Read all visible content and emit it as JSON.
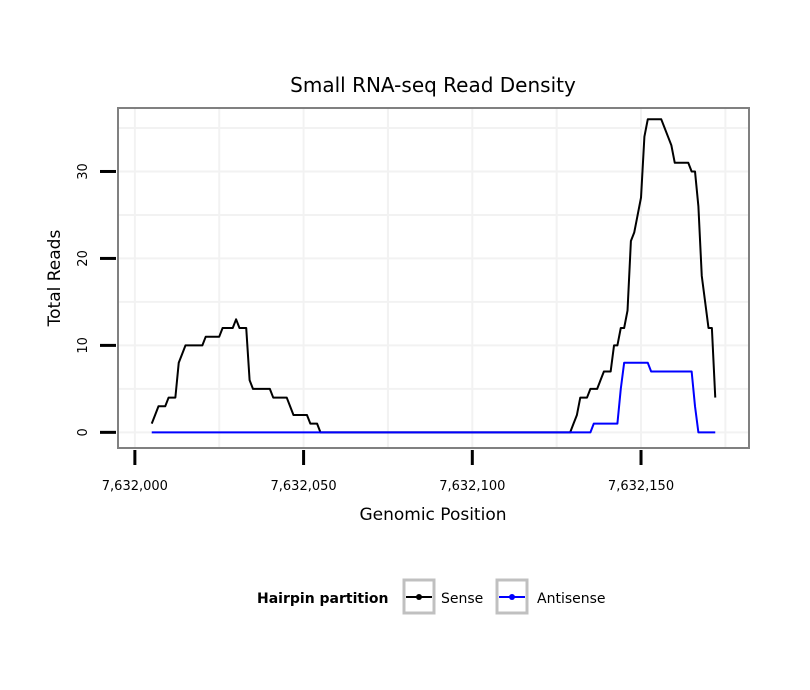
{
  "chart_data": {
    "type": "line",
    "title": "Small RNA-seq Read Density",
    "xlabel": "Genomic Position",
    "ylabel": "Total Reads",
    "xlim": [
      7631995,
      7632182
    ],
    "ylim": [
      -1.8,
      37.3
    ],
    "x_ticks": [
      7632000,
      7632050,
      7632100,
      7632150
    ],
    "x_tick_labels": [
      "7,632,000",
      "7,632,050",
      "7,632,100",
      "7,632,150"
    ],
    "y_ticks": [
      0,
      10,
      20,
      30
    ],
    "y_tick_labels": [
      "0",
      "10",
      "20",
      "30"
    ],
    "grid": true,
    "legend": {
      "title": "Hairpin partition",
      "position": "bottom",
      "entries": [
        "Sense",
        "Antisense"
      ]
    },
    "series": [
      {
        "name": "Sense",
        "color": "#000000",
        "points": [
          [
            7632005,
            1
          ],
          [
            7632006,
            2
          ],
          [
            7632007,
            3
          ],
          [
            7632008,
            3
          ],
          [
            7632009,
            3
          ],
          [
            7632010,
            4
          ],
          [
            7632011,
            4
          ],
          [
            7632012,
            4
          ],
          [
            7632013,
            8
          ],
          [
            7632014,
            9
          ],
          [
            7632015,
            10
          ],
          [
            7632016,
            10
          ],
          [
            7632017,
            10
          ],
          [
            7632018,
            10
          ],
          [
            7632019,
            10
          ],
          [
            7632020,
            10
          ],
          [
            7632021,
            11
          ],
          [
            7632022,
            11
          ],
          [
            7632023,
            11
          ],
          [
            7632024,
            11
          ],
          [
            7632025,
            11
          ],
          [
            7632026,
            12
          ],
          [
            7632027,
            12
          ],
          [
            7632028,
            12
          ],
          [
            7632029,
            12
          ],
          [
            7632030,
            13
          ],
          [
            7632031,
            12
          ],
          [
            7632032,
            12
          ],
          [
            7632033,
            12
          ],
          [
            7632034,
            6
          ],
          [
            7632035,
            5
          ],
          [
            7632036,
            5
          ],
          [
            7632037,
            5
          ],
          [
            7632038,
            5
          ],
          [
            7632039,
            5
          ],
          [
            7632040,
            5
          ],
          [
            7632041,
            4
          ],
          [
            7632042,
            4
          ],
          [
            7632043,
            4
          ],
          [
            7632044,
            4
          ],
          [
            7632045,
            4
          ],
          [
            7632046,
            3
          ],
          [
            7632047,
            2
          ],
          [
            7632048,
            2
          ],
          [
            7632049,
            2
          ],
          [
            7632050,
            2
          ],
          [
            7632051,
            2
          ],
          [
            7632052,
            1
          ],
          [
            7632053,
            1
          ],
          [
            7632054,
            1
          ],
          [
            7632055,
            0
          ],
          [
            7632060,
            0
          ],
          [
            7632070,
            0
          ],
          [
            7632080,
            0
          ],
          [
            7632090,
            0
          ],
          [
            7632100,
            0
          ],
          [
            7632110,
            0
          ],
          [
            7632120,
            0
          ],
          [
            7632129,
            0
          ],
          [
            7632130,
            1
          ],
          [
            7632131,
            2
          ],
          [
            7632132,
            4
          ],
          [
            7632133,
            4
          ],
          [
            7632134,
            4
          ],
          [
            7632135,
            5
          ],
          [
            7632136,
            5
          ],
          [
            7632137,
            5
          ],
          [
            7632138,
            6
          ],
          [
            7632139,
            7
          ],
          [
            7632140,
            7
          ],
          [
            7632141,
            7
          ],
          [
            7632142,
            10
          ],
          [
            7632143,
            10
          ],
          [
            7632144,
            12
          ],
          [
            7632145,
            12
          ],
          [
            7632146,
            14
          ],
          [
            7632147,
            22
          ],
          [
            7632148,
            23
          ],
          [
            7632149,
            25
          ],
          [
            7632150,
            27
          ],
          [
            7632151,
            34
          ],
          [
            7632152,
            36
          ],
          [
            7632153,
            36
          ],
          [
            7632154,
            36
          ],
          [
            7632155,
            36
          ],
          [
            7632156,
            36
          ],
          [
            7632157,
            35
          ],
          [
            7632158,
            34
          ],
          [
            7632159,
            33
          ],
          [
            7632160,
            31
          ],
          [
            7632161,
            31
          ],
          [
            7632162,
            31
          ],
          [
            7632163,
            31
          ],
          [
            7632164,
            31
          ],
          [
            7632165,
            30
          ],
          [
            7632166,
            30
          ],
          [
            7632167,
            26
          ],
          [
            7632168,
            18
          ],
          [
            7632169,
            15
          ],
          [
            7632170,
            12
          ],
          [
            7632171,
            12
          ],
          [
            7632172,
            4
          ]
        ]
      },
      {
        "name": "Antisense",
        "color": "#0000ff",
        "points": [
          [
            7632005,
            0
          ],
          [
            7632020,
            0
          ],
          [
            7632040,
            0
          ],
          [
            7632060,
            0
          ],
          [
            7632080,
            0
          ],
          [
            7632100,
            0
          ],
          [
            7632120,
            0
          ],
          [
            7632135,
            0
          ],
          [
            7632136,
            1
          ],
          [
            7632137,
            1
          ],
          [
            7632138,
            1
          ],
          [
            7632139,
            1
          ],
          [
            7632140,
            1
          ],
          [
            7632141,
            1
          ],
          [
            7632142,
            1
          ],
          [
            7632143,
            1
          ],
          [
            7632144,
            5
          ],
          [
            7632145,
            8
          ],
          [
            7632146,
            8
          ],
          [
            7632147,
            8
          ],
          [
            7632148,
            8
          ],
          [
            7632149,
            8
          ],
          [
            7632150,
            8
          ],
          [
            7632151,
            8
          ],
          [
            7632152,
            8
          ],
          [
            7632153,
            7
          ],
          [
            7632154,
            7
          ],
          [
            7632155,
            7
          ],
          [
            7632156,
            7
          ],
          [
            7632157,
            7
          ],
          [
            7632158,
            7
          ],
          [
            7632159,
            7
          ],
          [
            7632160,
            7
          ],
          [
            7632161,
            7
          ],
          [
            7632162,
            7
          ],
          [
            7632163,
            7
          ],
          [
            7632164,
            7
          ],
          [
            7632165,
            7
          ],
          [
            7632166,
            3
          ],
          [
            7632167,
            0
          ],
          [
            7632168,
            0
          ],
          [
            7632169,
            0
          ],
          [
            7632170,
            0
          ],
          [
            7632171,
            0
          ],
          [
            7632172,
            0
          ]
        ]
      }
    ]
  }
}
